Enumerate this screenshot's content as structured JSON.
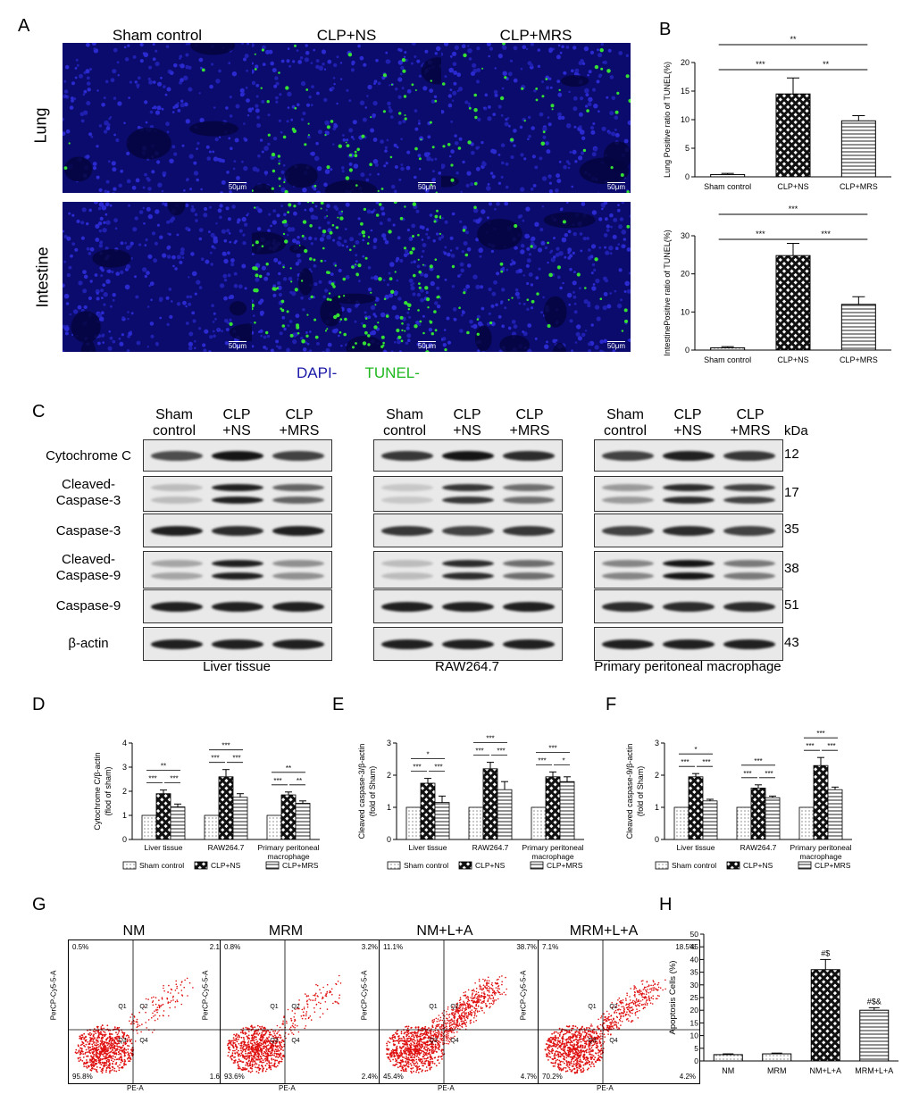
{
  "panels": {
    "A": "A",
    "B": "B",
    "C": "C",
    "D": "D",
    "E": "E",
    "F": "F",
    "G": "G",
    "H": "H"
  },
  "panelA": {
    "columns": [
      "Sham control",
      "CLP+NS",
      "CLP+MRS"
    ],
    "rows": [
      "Lung",
      "Intestine"
    ],
    "scalebar": "50μm",
    "legend_dapi": "DAPI-",
    "legend_tunel": "TUNEL-"
  },
  "panelC": {
    "groups": [
      {
        "title": "Liver tissue",
        "cols": [
          [
            "Sham",
            "control"
          ],
          [
            "CLP",
            "+NS"
          ],
          [
            "CLP",
            "+MRS"
          ]
        ]
      },
      {
        "title": "RAW264.7",
        "cols": [
          [
            "Sham",
            "control"
          ],
          [
            "CLP",
            "+NS"
          ],
          [
            "CLP",
            "+MRS"
          ]
        ]
      },
      {
        "title": "Primary peritoneal macrophage",
        "cols": [
          [
            "Sham",
            "control"
          ],
          [
            "CLP",
            "+NS"
          ],
          [
            "CLP",
            "+MRS"
          ]
        ]
      }
    ],
    "row_labels": [
      "Cytochrome C",
      "Cleaved-Caspase-3",
      "Caspase-3",
      "Cleaved-Caspase-9",
      "Caspase-9",
      "β-actin"
    ],
    "kda_header": "kDa",
    "kda": [
      "12",
      "17",
      "35",
      "38",
      "51",
      "43"
    ]
  },
  "chart_data": [
    {
      "panel": "B-top",
      "type": "bar",
      "categories": [
        "Sham control",
        "CLP+NS",
        "CLP+MRS"
      ],
      "values": [
        0.4,
        14.5,
        9.8
      ],
      "errors": [
        0.2,
        2.8,
        0.9
      ],
      "ylabel": "Lung Positive ratio of TUNEL(%)",
      "ylim": [
        0,
        20
      ],
      "yticks": [
        0,
        5,
        10,
        15,
        20
      ],
      "sig": [
        [
          "**",
          0,
          2
        ],
        [
          "***",
          0,
          1
        ],
        [
          "**",
          1,
          2
        ]
      ]
    },
    {
      "panel": "B-bottom",
      "type": "bar",
      "categories": [
        "Sham control",
        "CLP+NS",
        "CLP+MRS"
      ],
      "values": [
        0.6,
        24.8,
        12.0
      ],
      "errors": [
        0.3,
        3.2,
        2.0
      ],
      "ylabel": "IntestinePositive ratio of TUNEL(%)",
      "ylim": [
        0,
        30
      ],
      "yticks": [
        0,
        10,
        20,
        30
      ],
      "sig": [
        [
          "***",
          0,
          2
        ],
        [
          "***",
          0,
          1
        ],
        [
          "***",
          1,
          2
        ]
      ]
    },
    {
      "panel": "D",
      "type": "bar",
      "categories": [
        "Liver tissue",
        "RAW264.7",
        "Primary peritoneal macrophage"
      ],
      "series": [
        {
          "name": "Sham control",
          "values": [
            1,
            1,
            1
          ]
        },
        {
          "name": "CLP+NS",
          "values": [
            1.9,
            2.6,
            1.85
          ]
        },
        {
          "name": "CLP+MRS",
          "values": [
            1.35,
            1.75,
            1.5
          ]
        }
      ],
      "errors": [
        [
          0,
          0,
          0
        ],
        [
          0.15,
          0.3,
          0.12
        ],
        [
          0.12,
          0.15,
          0.1
        ]
      ],
      "ylabel": "Cytochrome C/β-actin (flod of sham)",
      "ylim": [
        0,
        4
      ],
      "yticks": [
        0,
        1,
        2,
        3,
        4
      ]
    },
    {
      "panel": "E",
      "type": "bar",
      "categories": [
        "Liver tissue",
        "RAW264.7",
        "Primary peritoneal macrophage"
      ],
      "series": [
        {
          "name": "Sham control",
          "values": [
            1,
            1,
            1
          ]
        },
        {
          "name": "CLP+NS",
          "values": [
            1.75,
            2.2,
            1.95
          ]
        },
        {
          "name": "CLP+MRS",
          "values": [
            1.15,
            1.55,
            1.8
          ]
        }
      ],
      "errors": [
        [
          0,
          0,
          0
        ],
        [
          0.15,
          0.2,
          0.15
        ],
        [
          0.2,
          0.25,
          0.15
        ]
      ],
      "ylabel": "Cleaved caspase-3/β-actin (fold of Sham)",
      "ylim": [
        0,
        3
      ],
      "yticks": [
        0,
        1,
        2,
        3
      ]
    },
    {
      "panel": "F",
      "type": "bar",
      "categories": [
        "Liver tissue",
        "RAW264.7",
        "Primary peritoneal macrophage"
      ],
      "series": [
        {
          "name": "Sham control",
          "values": [
            1,
            1,
            1
          ]
        },
        {
          "name": "CLP+NS",
          "values": [
            1.95,
            1.6,
            2.3
          ]
        },
        {
          "name": "CLP+MRS",
          "values": [
            1.2,
            1.3,
            1.55
          ]
        }
      ],
      "errors": [
        [
          0,
          0,
          0
        ],
        [
          0.1,
          0.1,
          0.25
        ],
        [
          0.05,
          0.05,
          0.08
        ]
      ],
      "ylabel": "Cleaved caspase-9/β-actin (fold of Sham)",
      "ylim": [
        0,
        3
      ],
      "yticks": [
        0,
        1,
        2,
        3
      ]
    },
    {
      "panel": "H",
      "type": "bar",
      "categories": [
        "NM",
        "MRM",
        "NM+L+A",
        "MRM+L+A"
      ],
      "values": [
        2.5,
        2.8,
        36,
        20
      ],
      "errors": [
        0.3,
        0.3,
        4,
        1
      ],
      "labels": [
        "",
        "",
        "#$",
        "#$&"
      ],
      "ylabel": "Apoptosis Cells (%)",
      "ylim": [
        0,
        50
      ],
      "yticks": [
        0,
        5,
        10,
        15,
        20,
        25,
        30,
        35,
        40,
        45,
        50
      ]
    }
  ],
  "panelDEF_sig": {
    "D": [
      [
        "**",
        "***",
        "***"
      ],
      [
        "***",
        "***",
        "***"
      ],
      [
        "**",
        "***",
        "**"
      ]
    ],
    "E": [
      [
        "*",
        "***",
        "***"
      ],
      [
        "***",
        "***",
        "***"
      ],
      [
        "***",
        "***",
        "*"
      ]
    ],
    "F": [
      [
        "*",
        "***",
        "***"
      ],
      [
        "***",
        "***",
        "***"
      ],
      [
        "***",
        "***",
        "***"
      ]
    ]
  },
  "legend_series": [
    "Sham control",
    "CLP+NS",
    "CLP+MRS"
  ],
  "panelG": {
    "plots": [
      {
        "title": "NM",
        "q1": "0.5%",
        "q2": "2.1%",
        "q3": "95.8%",
        "q4": "1.6%"
      },
      {
        "title": "MRM",
        "q1": "0.8%",
        "q2": "3.2%",
        "q3": "93.6%",
        "q4": "2.4%"
      },
      {
        "title": "NM+L+A",
        "q1": "11.1%",
        "q2": "38.7%",
        "q3": "45.4%",
        "q4": "4.7%"
      },
      {
        "title": "MRM+L+A",
        "q1": "7.1%",
        "q2": "18.5%",
        "q3": "70.2%",
        "q4": "4.2%"
      }
    ],
    "quad_names": [
      "Q1",
      "Q2",
      "Q3",
      "Q4"
    ],
    "xaxis": "PE-A",
    "yaxis": "PerCP-Cy5-5-A",
    "ticks": [
      "10²",
      "10³",
      "10⁴",
      "10⁵"
    ]
  },
  "colors": {
    "dapi": "#1a1aa8",
    "tunel": "#1fb81f",
    "flow": "#e01010"
  }
}
